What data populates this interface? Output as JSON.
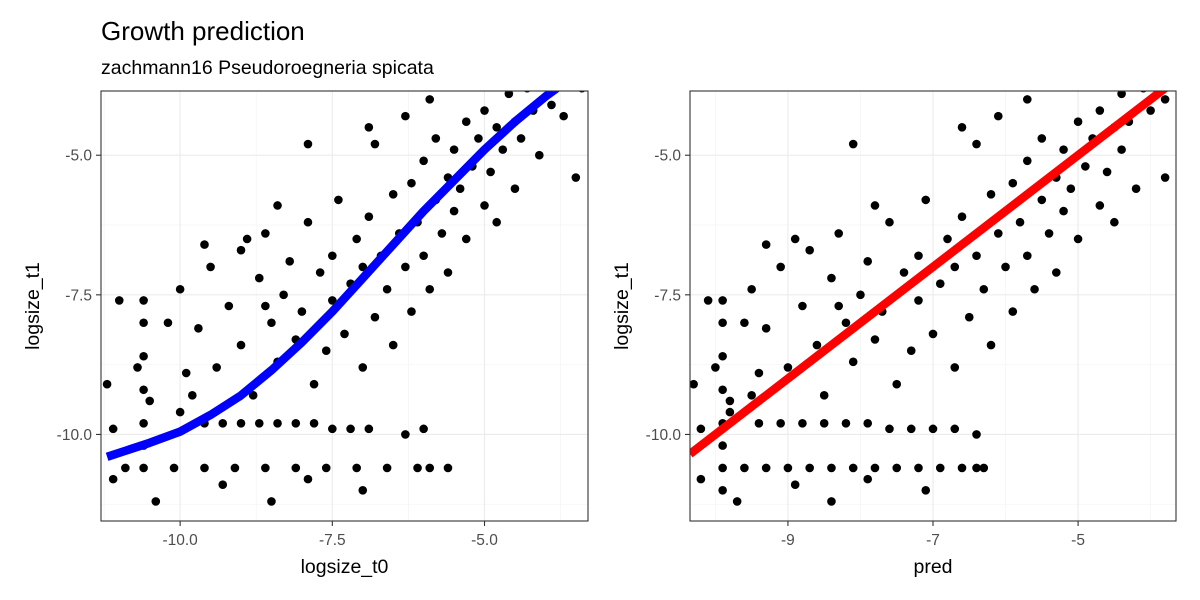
{
  "header": {
    "title": "Growth prediction",
    "subtitle": "zachmann16 Pseudoroegneria spicata"
  },
  "chart_data": [
    {
      "type": "scatter",
      "panel": "left",
      "xlabel": "logsize_t0",
      "ylabel": "logsize_t1",
      "xlim": [
        -11.3,
        -3.3
      ],
      "ylim": [
        -11.55,
        -3.85
      ],
      "x_ticks": [
        -10.0,
        -7.5,
        -5.0
      ],
      "x_tick_labels": [
        "-10.0",
        "-7.5",
        "-5.0"
      ],
      "y_ticks": [
        -10.0,
        -7.5,
        -5.0
      ],
      "y_tick_labels": [
        "-10.0",
        "-7.5",
        "-5.0"
      ],
      "grid": true,
      "point_color": "#000000",
      "fit_line": {
        "color": "#0000ff",
        "kind": "smooth curve",
        "points": [
          [
            -11.2,
            -10.4
          ],
          [
            -10.5,
            -10.15
          ],
          [
            -10.0,
            -9.95
          ],
          [
            -9.5,
            -9.65
          ],
          [
            -9.0,
            -9.3
          ],
          [
            -8.5,
            -8.85
          ],
          [
            -8.0,
            -8.35
          ],
          [
            -7.5,
            -7.8
          ],
          [
            -7.0,
            -7.2
          ],
          [
            -6.5,
            -6.6
          ],
          [
            -6.0,
            -6.0
          ],
          [
            -5.5,
            -5.45
          ],
          [
            -5.0,
            -4.9
          ],
          [
            -4.5,
            -4.4
          ],
          [
            -4.0,
            -3.95
          ],
          [
            -3.5,
            -3.55
          ]
        ]
      },
      "points": [
        [
          -10.6,
          -10.6
        ],
        [
          -10.1,
          -10.6
        ],
        [
          -9.6,
          -10.6
        ],
        [
          -9.1,
          -10.6
        ],
        [
          -8.6,
          -10.6
        ],
        [
          -8.1,
          -10.6
        ],
        [
          -7.6,
          -10.6
        ],
        [
          -7.1,
          -10.6
        ],
        [
          -6.6,
          -10.6
        ],
        [
          -6.1,
          -10.6
        ],
        [
          -5.6,
          -10.6
        ],
        [
          -10.9,
          -10.6
        ],
        [
          -10.6,
          -7.6
        ],
        [
          -10.6,
          -8.0
        ],
        [
          -10.6,
          -8.6
        ],
        [
          -10.6,
          -9.2
        ],
        [
          -10.6,
          -9.8
        ],
        [
          -10.6,
          -10.2
        ],
        [
          -10.7,
          -8.8
        ],
        [
          -10.5,
          -9.4
        ],
        [
          -11.2,
          -9.1
        ],
        [
          -11.1,
          -9.9
        ],
        [
          -11.1,
          -10.8
        ],
        [
          -11.0,
          -7.6
        ],
        [
          -10.4,
          -11.2
        ],
        [
          -9.3,
          -10.9
        ],
        [
          -8.5,
          -11.2
        ],
        [
          -7.9,
          -10.8
        ],
        [
          -7.0,
          -11.0
        ],
        [
          -5.9,
          -10.6
        ],
        [
          -9.6,
          -9.8
        ],
        [
          -9.3,
          -9.8
        ],
        [
          -9.0,
          -9.8
        ],
        [
          -8.7,
          -9.8
        ],
        [
          -8.4,
          -9.8
        ],
        [
          -8.1,
          -9.8
        ],
        [
          -7.8,
          -9.8
        ],
        [
          -7.5,
          -9.9
        ],
        [
          -7.2,
          -9.9
        ],
        [
          -6.9,
          -9.9
        ],
        [
          -6.3,
          -10.0
        ],
        [
          -6.0,
          -9.9
        ],
        [
          -10.0,
          -7.4
        ],
        [
          -9.7,
          -8.1
        ],
        [
          -9.5,
          -7.0
        ],
        [
          -9.4,
          -8.8
        ],
        [
          -9.2,
          -7.7
        ],
        [
          -9.0,
          -6.7
        ],
        [
          -9.0,
          -8.4
        ],
        [
          -8.8,
          -9.3
        ],
        [
          -8.7,
          -7.2
        ],
        [
          -8.6,
          -6.4
        ],
        [
          -8.5,
          -8.0
        ],
        [
          -8.4,
          -8.7
        ],
        [
          -8.3,
          -7.5
        ],
        [
          -8.2,
          -6.9
        ],
        [
          -8.1,
          -8.3
        ],
        [
          -8.0,
          -7.8
        ],
        [
          -7.9,
          -6.2
        ],
        [
          -7.8,
          -9.1
        ],
        [
          -7.7,
          -7.1
        ],
        [
          -7.6,
          -8.5
        ],
        [
          -7.5,
          -6.8
        ],
        [
          -7.5,
          -7.6
        ],
        [
          -7.4,
          -5.8
        ],
        [
          -7.3,
          -8.2
        ],
        [
          -7.2,
          -7.3
        ],
        [
          -7.1,
          -6.5
        ],
        [
          -7.0,
          -8.8
        ],
        [
          -7.0,
          -7.0
        ],
        [
          -6.9,
          -6.1
        ],
        [
          -6.8,
          -7.9
        ],
        [
          -6.8,
          -4.8
        ],
        [
          -6.7,
          -6.8
        ],
        [
          -6.6,
          -7.4
        ],
        [
          -6.5,
          -5.7
        ],
        [
          -6.5,
          -8.4
        ],
        [
          -6.4,
          -6.4
        ],
        [
          -6.3,
          -7.0
        ],
        [
          -6.2,
          -5.5
        ],
        [
          -6.2,
          -7.8
        ],
        [
          -6.1,
          -6.2
        ],
        [
          -6.0,
          -5.1
        ],
        [
          -6.0,
          -6.8
        ],
        [
          -5.9,
          -7.4
        ],
        [
          -5.8,
          -5.8
        ],
        [
          -5.8,
          -4.7
        ],
        [
          -5.7,
          -6.4
        ],
        [
          -5.6,
          -5.4
        ],
        [
          -5.6,
          -7.1
        ],
        [
          -5.5,
          -4.9
        ],
        [
          -5.5,
          -6.0
        ],
        [
          -5.4,
          -5.6
        ],
        [
          -5.3,
          -4.4
        ],
        [
          -5.3,
          -6.5
        ],
        [
          -5.2,
          -5.2
        ],
        [
          -5.1,
          -4.7
        ],
        [
          -5.0,
          -5.9
        ],
        [
          -5.0,
          -4.2
        ],
        [
          -4.9,
          -5.3
        ],
        [
          -4.8,
          -4.5
        ],
        [
          -4.8,
          -6.2
        ],
        [
          -4.7,
          -4.9
        ],
        [
          -4.6,
          -3.9
        ],
        [
          -4.5,
          -4.4
        ],
        [
          -4.5,
          -5.6
        ],
        [
          -4.4,
          -4.7
        ],
        [
          -4.3,
          -3.8
        ],
        [
          -4.2,
          -4.2
        ],
        [
          -4.1,
          -5.0
        ],
        [
          -4.0,
          -3.6
        ],
        [
          -3.9,
          -4.1
        ],
        [
          -3.8,
          -3.5
        ],
        [
          -3.7,
          -4.3
        ],
        [
          -3.6,
          -3.3
        ],
        [
          -3.5,
          -3.4
        ],
        [
          -3.4,
          -3.8
        ],
        [
          -3.5,
          -5.4
        ],
        [
          -3.8,
          -3.2
        ],
        [
          -4.2,
          -3.5
        ],
        [
          -7.9,
          -4.8
        ],
        [
          -8.4,
          -5.9
        ],
        [
          -8.9,
          -6.5
        ],
        [
          -9.6,
          -6.6
        ],
        [
          -6.9,
          -4.5
        ],
        [
          -6.3,
          -4.3
        ],
        [
          -5.9,
          -4.0
        ],
        [
          -8.6,
          -7.7
        ],
        [
          -9.9,
          -8.9
        ],
        [
          -9.8,
          -9.3
        ],
        [
          -10.2,
          -8.0
        ],
        [
          -10.0,
          -9.6
        ]
      ]
    },
    {
      "type": "scatter",
      "panel": "right",
      "xlabel": "pred",
      "ylabel": "logsize_t1",
      "xlim": [
        -10.35,
        -3.65
      ],
      "ylim": [
        -11.55,
        -3.85
      ],
      "x_ticks": [
        -9,
        -7,
        -5
      ],
      "x_tick_labels": [
        "-9",
        "-7",
        "-5"
      ],
      "y_ticks": [
        -10.0,
        -7.5,
        -5.0
      ],
      "y_tick_labels": [
        "-10.0",
        "-7.5",
        "-5.0"
      ],
      "grid": true,
      "point_color": "#000000",
      "fit_line": {
        "color": "#ff0000",
        "kind": "identity line",
        "points": [
          [
            -10.35,
            -10.35
          ],
          [
            -3.65,
            -3.65
          ]
        ]
      },
      "points": [
        [
          -9.9,
          -10.6
        ],
        [
          -9.6,
          -10.6
        ],
        [
          -9.3,
          -10.6
        ],
        [
          -9.0,
          -10.6
        ],
        [
          -8.7,
          -10.6
        ],
        [
          -8.4,
          -10.6
        ],
        [
          -8.1,
          -10.6
        ],
        [
          -7.8,
          -10.6
        ],
        [
          -7.5,
          -10.6
        ],
        [
          -7.2,
          -10.6
        ],
        [
          -6.9,
          -10.6
        ],
        [
          -6.6,
          -10.6
        ],
        [
          -6.3,
          -10.6
        ],
        [
          -9.9,
          -7.6
        ],
        [
          -9.9,
          -8.0
        ],
        [
          -9.9,
          -8.6
        ],
        [
          -9.9,
          -9.2
        ],
        [
          -9.9,
          -9.8
        ],
        [
          -9.9,
          -10.2
        ],
        [
          -10.0,
          -8.8
        ],
        [
          -9.8,
          -9.4
        ],
        [
          -9.9,
          -11.0
        ],
        [
          -10.3,
          -9.1
        ],
        [
          -10.2,
          -9.9
        ],
        [
          -10.2,
          -10.8
        ],
        [
          -10.1,
          -7.6
        ],
        [
          -9.7,
          -11.2
        ],
        [
          -8.9,
          -10.9
        ],
        [
          -8.4,
          -11.2
        ],
        [
          -7.9,
          -10.8
        ],
        [
          -7.1,
          -11.0
        ],
        [
          -6.4,
          -10.6
        ],
        [
          -9.4,
          -9.8
        ],
        [
          -9.1,
          -9.8
        ],
        [
          -8.8,
          -9.8
        ],
        [
          -8.5,
          -9.8
        ],
        [
          -8.2,
          -9.8
        ],
        [
          -7.9,
          -9.8
        ],
        [
          -7.6,
          -9.9
        ],
        [
          -7.3,
          -9.9
        ],
        [
          -7.0,
          -9.9
        ],
        [
          -6.7,
          -9.9
        ],
        [
          -6.4,
          -10.0
        ],
        [
          -9.5,
          -7.4
        ],
        [
          -9.3,
          -8.1
        ],
        [
          -9.1,
          -7.0
        ],
        [
          -9.0,
          -8.8
        ],
        [
          -8.8,
          -7.7
        ],
        [
          -8.7,
          -6.7
        ],
        [
          -8.6,
          -8.4
        ],
        [
          -8.5,
          -9.3
        ],
        [
          -8.4,
          -7.2
        ],
        [
          -8.3,
          -6.4
        ],
        [
          -8.2,
          -8.0
        ],
        [
          -8.1,
          -8.7
        ],
        [
          -8.0,
          -7.5
        ],
        [
          -7.9,
          -6.9
        ],
        [
          -7.8,
          -8.3
        ],
        [
          -7.7,
          -7.8
        ],
        [
          -7.6,
          -6.2
        ],
        [
          -7.5,
          -9.1
        ],
        [
          -7.4,
          -7.1
        ],
        [
          -7.3,
          -8.5
        ],
        [
          -7.2,
          -6.8
        ],
        [
          -7.2,
          -7.6
        ],
        [
          -7.1,
          -5.8
        ],
        [
          -7.0,
          -8.2
        ],
        [
          -6.9,
          -7.3
        ],
        [
          -6.8,
          -6.5
        ],
        [
          -6.7,
          -8.8
        ],
        [
          -6.7,
          -7.0
        ],
        [
          -6.6,
          -6.1
        ],
        [
          -6.5,
          -7.9
        ],
        [
          -6.4,
          -4.8
        ],
        [
          -6.4,
          -6.8
        ],
        [
          -6.3,
          -7.4
        ],
        [
          -6.2,
          -5.7
        ],
        [
          -6.2,
          -8.4
        ],
        [
          -6.1,
          -6.4
        ],
        [
          -6.0,
          -7.0
        ],
        [
          -5.9,
          -5.5
        ],
        [
          -5.9,
          -7.8
        ],
        [
          -5.8,
          -6.2
        ],
        [
          -5.7,
          -5.1
        ],
        [
          -5.7,
          -6.8
        ],
        [
          -5.6,
          -7.4
        ],
        [
          -5.5,
          -5.8
        ],
        [
          -5.5,
          -4.7
        ],
        [
          -5.4,
          -6.4
        ],
        [
          -5.3,
          -5.4
        ],
        [
          -5.3,
          -7.1
        ],
        [
          -5.2,
          -4.9
        ],
        [
          -5.2,
          -6.0
        ],
        [
          -5.1,
          -5.6
        ],
        [
          -5.0,
          -4.4
        ],
        [
          -5.0,
          -6.5
        ],
        [
          -4.9,
          -5.2
        ],
        [
          -4.8,
          -4.7
        ],
        [
          -4.7,
          -5.9
        ],
        [
          -4.7,
          -4.2
        ],
        [
          -4.6,
          -5.3
        ],
        [
          -4.5,
          -4.5
        ],
        [
          -4.5,
          -6.2
        ],
        [
          -4.4,
          -4.9
        ],
        [
          -4.4,
          -3.9
        ],
        [
          -4.3,
          -4.4
        ],
        [
          -4.2,
          -5.6
        ],
        [
          -4.1,
          -3.8
        ],
        [
          -4.0,
          -4.2
        ],
        [
          -3.9,
          -3.5
        ],
        [
          -3.8,
          -4.0
        ],
        [
          -4.0,
          -3.3
        ],
        [
          -4.3,
          -3.2
        ],
        [
          -3.8,
          -5.4
        ],
        [
          -4.6,
          -3.5
        ],
        [
          -8.1,
          -4.8
        ],
        [
          -7.8,
          -5.9
        ],
        [
          -8.9,
          -6.5
        ],
        [
          -9.3,
          -6.6
        ],
        [
          -6.6,
          -4.5
        ],
        [
          -6.1,
          -4.3
        ],
        [
          -5.7,
          -4.0
        ],
        [
          -8.3,
          -7.7
        ],
        [
          -9.4,
          -8.9
        ],
        [
          -9.5,
          -9.3
        ],
        [
          -9.6,
          -8.0
        ],
        [
          -9.8,
          -9.6
        ]
      ]
    }
  ]
}
